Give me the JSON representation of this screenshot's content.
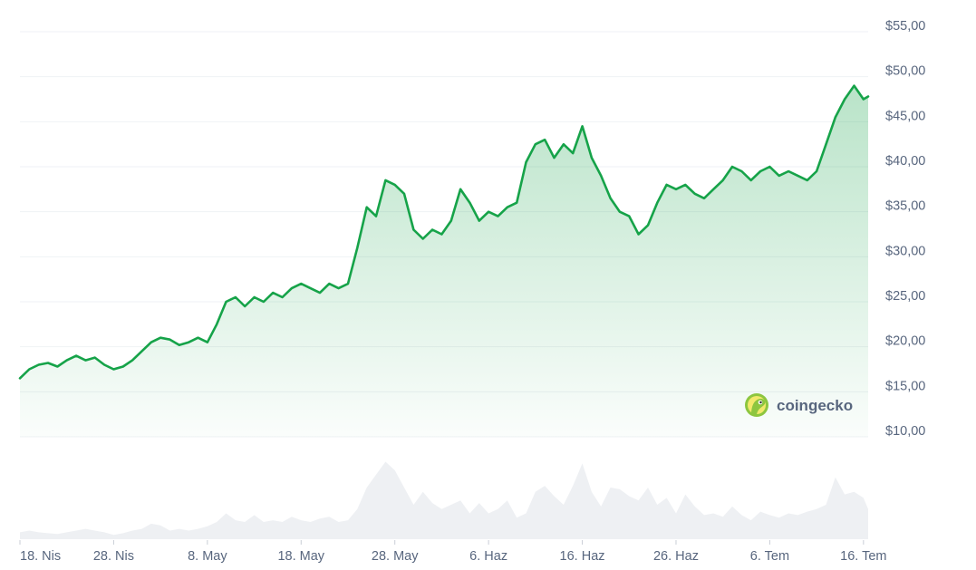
{
  "chart_data": {
    "type": "area",
    "title": "",
    "xlabel": "",
    "ylabel": "",
    "ylim": [
      10,
      55
    ],
    "yticks": [
      "$55,00",
      "$50,00",
      "$45,00",
      "$40,00",
      "$35,00",
      "$30,00",
      "$25,00",
      "$20,00",
      "$15,00",
      "$10,00"
    ],
    "ytick_values": [
      55,
      50,
      45,
      40,
      35,
      30,
      25,
      20,
      15,
      10
    ],
    "xticks": [
      "18. Nis",
      "28. Nis",
      "8. May",
      "18. May",
      "28. May",
      "6. Haz",
      "16. Haz",
      "26. Haz",
      "6. Tem",
      "16. Tem"
    ],
    "xtick_days": [
      0,
      10,
      20,
      30,
      40,
      50,
      60,
      70,
      80,
      90
    ],
    "grid": true,
    "series": [
      {
        "kind": "price",
        "color": "#16a349",
        "x": [
          0,
          1,
          2,
          3,
          4,
          5,
          6,
          7,
          8,
          9,
          10,
          11,
          12,
          13,
          14,
          15,
          16,
          17,
          18,
          19,
          20,
          21,
          22,
          23,
          24,
          25,
          26,
          27,
          28,
          29,
          30,
          31,
          32,
          33,
          34,
          35,
          36,
          37,
          38,
          39,
          40,
          41,
          42,
          43,
          44,
          45,
          46,
          47,
          48,
          49,
          50,
          51,
          52,
          53,
          54,
          55,
          56,
          57,
          58,
          59,
          60,
          61,
          62,
          63,
          64,
          65,
          66,
          67,
          68,
          69,
          70,
          71,
          72,
          73,
          74,
          75,
          76,
          77,
          78,
          79,
          80,
          81,
          82,
          83,
          84,
          85,
          86,
          87,
          88,
          89,
          90,
          90.5
        ],
        "values": [
          16.5,
          17.5,
          18.0,
          18.2,
          17.8,
          18.5,
          19.0,
          18.5,
          18.8,
          18.0,
          17.5,
          17.8,
          18.5,
          19.5,
          20.5,
          21.0,
          20.8,
          20.2,
          20.5,
          21.0,
          20.5,
          22.5,
          25.0,
          25.5,
          24.5,
          25.5,
          25.0,
          26.0,
          25.5,
          26.5,
          27.0,
          26.5,
          26.0,
          27.0,
          26.5,
          27.0,
          31.0,
          35.5,
          34.5,
          38.5,
          38.0,
          37.0,
          33.0,
          32.0,
          33.0,
          32.5,
          34.0,
          37.5,
          36.0,
          34.0,
          35.0,
          34.5,
          35.5,
          36.0,
          40.5,
          42.5,
          43.0,
          41.0,
          42.5,
          41.5,
          44.5,
          41.0,
          39.0,
          36.5,
          35.0,
          34.5,
          32.5,
          33.5,
          36.0,
          38.0,
          37.5,
          38.0,
          37.0,
          36.5,
          37.5,
          38.5,
          40.0,
          39.5,
          38.5,
          39.5,
          40.0,
          39.0,
          39.5,
          39.0,
          38.5,
          39.5,
          42.5,
          45.5,
          47.5,
          49.0,
          47.5,
          47.8
        ]
      }
    ],
    "volume": {
      "color": "#eef0f3",
      "x": [
        0,
        1,
        2,
        3,
        4,
        5,
        6,
        7,
        8,
        9,
        10,
        11,
        12,
        13,
        14,
        15,
        16,
        17,
        18,
        19,
        20,
        21,
        22,
        23,
        24,
        25,
        26,
        27,
        28,
        29,
        30,
        31,
        32,
        33,
        34,
        35,
        36,
        37,
        38,
        39,
        40,
        41,
        42,
        43,
        44,
        45,
        46,
        47,
        48,
        49,
        50,
        51,
        52,
        53,
        54,
        55,
        56,
        57,
        58,
        59,
        60,
        61,
        62,
        63,
        64,
        65,
        66,
        67,
        68,
        69,
        70,
        71,
        72,
        73,
        74,
        75,
        76,
        77,
        78,
        79,
        80,
        81,
        82,
        83,
        84,
        85,
        86,
        87,
        88,
        89,
        90,
        90.5
      ],
      "values": [
        0.08,
        0.1,
        0.08,
        0.07,
        0.06,
        0.08,
        0.1,
        0.12,
        0.1,
        0.08,
        0.05,
        0.07,
        0.1,
        0.12,
        0.18,
        0.16,
        0.1,
        0.12,
        0.1,
        0.12,
        0.15,
        0.2,
        0.3,
        0.22,
        0.2,
        0.28,
        0.2,
        0.22,
        0.2,
        0.26,
        0.22,
        0.2,
        0.24,
        0.26,
        0.2,
        0.22,
        0.35,
        0.6,
        0.75,
        0.9,
        0.8,
        0.6,
        0.4,
        0.55,
        0.42,
        0.35,
        0.4,
        0.45,
        0.3,
        0.42,
        0.3,
        0.35,
        0.45,
        0.25,
        0.3,
        0.55,
        0.62,
        0.5,
        0.4,
        0.62,
        0.88,
        0.55,
        0.38,
        0.6,
        0.58,
        0.5,
        0.45,
        0.6,
        0.4,
        0.48,
        0.3,
        0.52,
        0.38,
        0.28,
        0.3,
        0.26,
        0.38,
        0.28,
        0.22,
        0.32,
        0.28,
        0.25,
        0.3,
        0.28,
        0.32,
        0.35,
        0.4,
        0.72,
        0.52,
        0.55,
        0.48,
        0.35
      ]
    }
  },
  "branding": {
    "logo_text": "coingecko",
    "logo_icon": "gecko-icon"
  }
}
